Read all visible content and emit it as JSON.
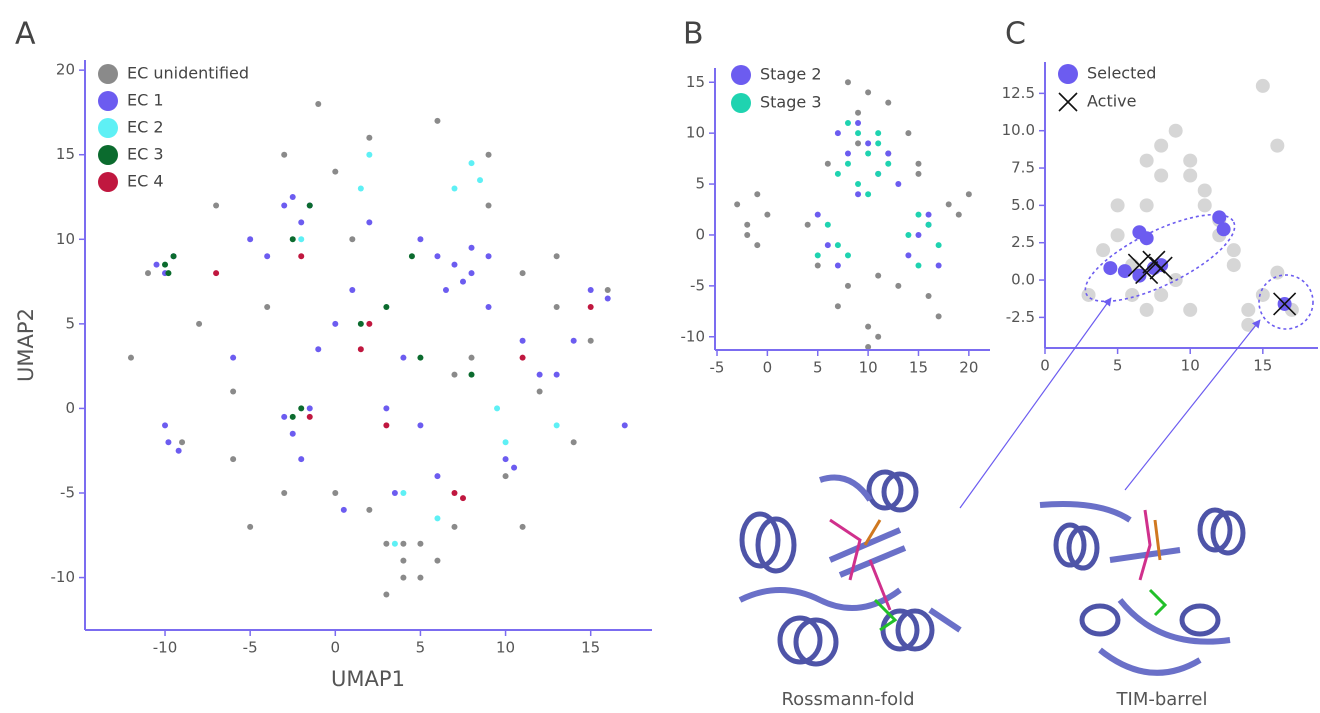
{
  "chart_data": [
    {
      "type": "scatter",
      "panel_label": "A",
      "xlabel": "UMAP1",
      "ylabel": "UMAP2",
      "xlim": [
        -14.7,
        18.6
      ],
      "ylim": [
        -13.1,
        20.6
      ],
      "xticks": [
        -10,
        -5,
        0,
        5,
        10,
        15
      ],
      "yticks": [
        -10,
        -5,
        0,
        5,
        10,
        15,
        20
      ],
      "legend": "upper left",
      "point_radius": 3,
      "series": [
        {
          "name": "EC unidentified",
          "color": "#8a8a8a",
          "x": [
            -12,
            -11,
            -8,
            -7,
            -6,
            -4,
            -3,
            -1,
            0,
            1,
            2,
            3,
            4,
            5,
            6,
            7,
            8,
            9,
            10,
            11,
            12,
            13,
            14,
            15,
            16,
            -9,
            -5,
            2,
            4,
            6,
            3,
            5,
            -3,
            9,
            13,
            -6,
            0,
            7,
            11,
            4
          ],
          "y": [
            3,
            8,
            5,
            12,
            -3,
            6,
            15,
            18,
            -5,
            10,
            16,
            -8,
            -9,
            -10,
            17,
            -7,
            3,
            12,
            -4,
            8,
            1,
            6,
            -2,
            4,
            7,
            -2,
            -7,
            -6,
            -8,
            -9,
            -11,
            -8,
            -5,
            15,
            9,
            1,
            14,
            2,
            -7,
            -10
          ]
        },
        {
          "name": "EC 1",
          "color": "#6c5cf0",
          "x": [
            -10.5,
            -10,
            -9.5,
            -10,
            -9.8,
            -9.2,
            -3,
            -2.5,
            -2,
            -1.5,
            -3,
            -2.5,
            -2,
            -1.5,
            5,
            6,
            7,
            8,
            9,
            7.5,
            6.5,
            8,
            16,
            15,
            10,
            10.5,
            11,
            4,
            5,
            3,
            1,
            0,
            14,
            13,
            -5,
            -4,
            12,
            2,
            -1,
            9,
            0.5,
            -6,
            6,
            3.5,
            17
          ],
          "y": [
            8.5,
            8,
            9,
            -1,
            -2,
            -2.5,
            12,
            12.5,
            11,
            12,
            -0.5,
            -1.5,
            -3,
            0,
            10,
            9,
            8.5,
            8,
            9,
            7.5,
            7,
            9.5,
            6.5,
            7,
            -3,
            -3.5,
            4,
            3,
            -1,
            0,
            7,
            5,
            4,
            2,
            10,
            9,
            2,
            11,
            3.5,
            6,
            -6,
            3,
            -4,
            -5,
            -1
          ]
        },
        {
          "name": "EC 2",
          "color": "#5ef0f5",
          "x": [
            1.5,
            2,
            8,
            8.5,
            7,
            10,
            4,
            6,
            9.5,
            13,
            -2,
            3.5
          ],
          "y": [
            13,
            15,
            14.5,
            13.5,
            13,
            -2,
            -5,
            -6.5,
            0,
            -1,
            10,
            -8
          ]
        },
        {
          "name": "EC 3",
          "color": "#0b6b2e",
          "x": [
            -10,
            -9.8,
            -9.5,
            -2.5,
            -2,
            -1.5,
            1.5,
            5,
            4.5,
            3,
            -2.5,
            8
          ],
          "y": [
            8.5,
            8,
            9,
            -0.5,
            0,
            12,
            5,
            3,
            9,
            6,
            10,
            2
          ]
        },
        {
          "name": "EC 4",
          "color": "#c0173f",
          "x": [
            7,
            7.5,
            2,
            1.5,
            -1.5,
            -2,
            3,
            -7,
            15,
            11
          ],
          "y": [
            -5,
            -5.3,
            5,
            3.5,
            -0.5,
            9,
            -1,
            8,
            6,
            3
          ]
        }
      ]
    },
    {
      "type": "scatter",
      "panel_label": "B",
      "xlim": [
        -5.2,
        22.1
      ],
      "ylim": [
        -11.3,
        16.4
      ],
      "xticks": [
        -5,
        0,
        5,
        10,
        15,
        20
      ],
      "yticks": [
        -10,
        -5,
        0,
        5,
        10,
        15
      ],
      "legend": "upper left",
      "point_radius": 3,
      "series": [
        {
          "color": "#8a8a8a",
          "x": [
            -3,
            -2,
            -1,
            0,
            -2,
            -1,
            8,
            10,
            12,
            9,
            6,
            5,
            15,
            17,
            19,
            20,
            7,
            10,
            13,
            11,
            14,
            9,
            4,
            16,
            18,
            12,
            8,
            11,
            10,
            15
          ],
          "y": [
            3,
            1,
            4,
            2,
            0,
            -1,
            15,
            14,
            13,
            9,
            7,
            -3,
            7,
            -8,
            2,
            4,
            -7,
            -9,
            -5,
            -4,
            10,
            12,
            1,
            -6,
            3,
            8,
            -5,
            -10,
            -11,
            6
          ]
        },
        {
          "name": "Stage 2",
          "color": "#6c5cf0",
          "x": [
            7,
            8,
            10,
            12,
            11,
            9,
            6,
            7,
            15,
            16,
            17,
            14,
            5,
            9,
            13,
            16
          ],
          "y": [
            10,
            8,
            9,
            8,
            6,
            4,
            -1,
            -3,
            0,
            1,
            -3,
            -2,
            2,
            11,
            5,
            2
          ]
        },
        {
          "name": "Stage 3",
          "color": "#1fd3b0",
          "x": [
            8,
            9,
            10,
            11,
            12,
            7,
            9,
            10,
            11,
            6,
            7,
            8,
            14,
            15,
            16,
            17,
            15,
            5,
            11,
            8
          ],
          "y": [
            11,
            10,
            8,
            9,
            7,
            6,
            5,
            4,
            6,
            1,
            -1,
            -2,
            0,
            2,
            1,
            -1,
            -3,
            -2,
            10,
            7
          ]
        }
      ]
    },
    {
      "type": "scatter",
      "panel_label": "C",
      "xlim": [
        0,
        18.8
      ],
      "ylim": [
        -4.55,
        14.6
      ],
      "xticks": [
        0,
        5,
        10,
        15
      ],
      "yticks": [
        -2.5,
        {
          "value": 0,
          "label": "0.0"
        },
        2.5,
        {
          "value": 5,
          "label": "5.0"
        },
        7.5,
        {
          "value": 10,
          "label": "10.0"
        },
        12.5
      ],
      "legend": "upper left",
      "point_radius": 7,
      "series": [
        {
          "color": "#8a8a8a",
          "opacity": 0.35,
          "x": [
            4,
            5,
            6,
            7,
            8,
            9,
            10,
            11,
            12,
            6,
            7,
            8,
            9,
            10,
            13,
            14,
            15,
            16,
            17,
            3,
            5,
            7,
            12,
            13,
            14,
            15,
            16,
            8,
            10,
            11
          ],
          "y": [
            2,
            5,
            1,
            8,
            9,
            10,
            7,
            6,
            4,
            -1,
            -2,
            -1,
            0,
            -2,
            1,
            -3,
            -1,
            9,
            -2,
            -1,
            3,
            5,
            3,
            2,
            -2,
            13,
            0.5,
            7,
            8,
            5
          ]
        },
        {
          "name": "Selected",
          "color": "#6c5cf0",
          "x": [
            4.5,
            5.5,
            6.5,
            7,
            7.5,
            8,
            6.5,
            12,
            12.3,
            16.5
          ],
          "y": [
            0.8,
            0.6,
            3.2,
            2.8,
            0.8,
            1,
            0.3,
            4.2,
            3.4,
            -1.6
          ]
        },
        {
          "name": "Active",
          "color": "#111111",
          "marker": "x",
          "x": [
            6.5,
            7,
            7.5,
            8,
            16.5
          ],
          "y": [
            1,
            0.5,
            1.2,
            0.8,
            -1.6
          ]
        }
      ]
    }
  ],
  "structure_labels": [
    "Rossmann-fold",
    "TIM-barrel"
  ]
}
